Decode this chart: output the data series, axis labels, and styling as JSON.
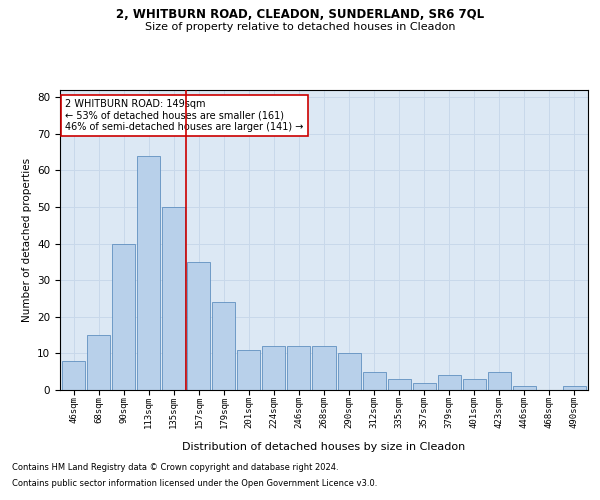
{
  "title1": "2, WHITBURN ROAD, CLEADON, SUNDERLAND, SR6 7QL",
  "title2": "Size of property relative to detached houses in Cleadon",
  "xlabel": "Distribution of detached houses by size in Cleadon",
  "ylabel": "Number of detached properties",
  "footnote1": "Contains HM Land Registry data © Crown copyright and database right 2024.",
  "footnote2": "Contains public sector information licensed under the Open Government Licence v3.0.",
  "bin_labels": [
    "46sqm",
    "68sqm",
    "90sqm",
    "113sqm",
    "135sqm",
    "157sqm",
    "179sqm",
    "201sqm",
    "224sqm",
    "246sqm",
    "268sqm",
    "290sqm",
    "312sqm",
    "335sqm",
    "357sqm",
    "379sqm",
    "401sqm",
    "423sqm",
    "446sqm",
    "468sqm",
    "490sqm"
  ],
  "bar_values": [
    8,
    15,
    40,
    64,
    50,
    35,
    24,
    11,
    12,
    12,
    12,
    10,
    5,
    3,
    2,
    4,
    3,
    5,
    1,
    0,
    1
  ],
  "bar_color": "#b8d0ea",
  "bar_edge_color": "#6090c0",
  "grid_color": "#c8d8ea",
  "background_color": "#dce8f4",
  "vline_bin_index": 4.5,
  "annotation_text": "2 WHITBURN ROAD: 149sqm\n← 53% of detached houses are smaller (161)\n46% of semi-detached houses are larger (141) →",
  "annotation_box_color": "#ffffff",
  "annotation_box_edge": "#cc0000",
  "vline_color": "#cc0000",
  "ylim": [
    0,
    82
  ],
  "yticks": [
    0,
    10,
    20,
    30,
    40,
    50,
    60,
    70,
    80
  ]
}
